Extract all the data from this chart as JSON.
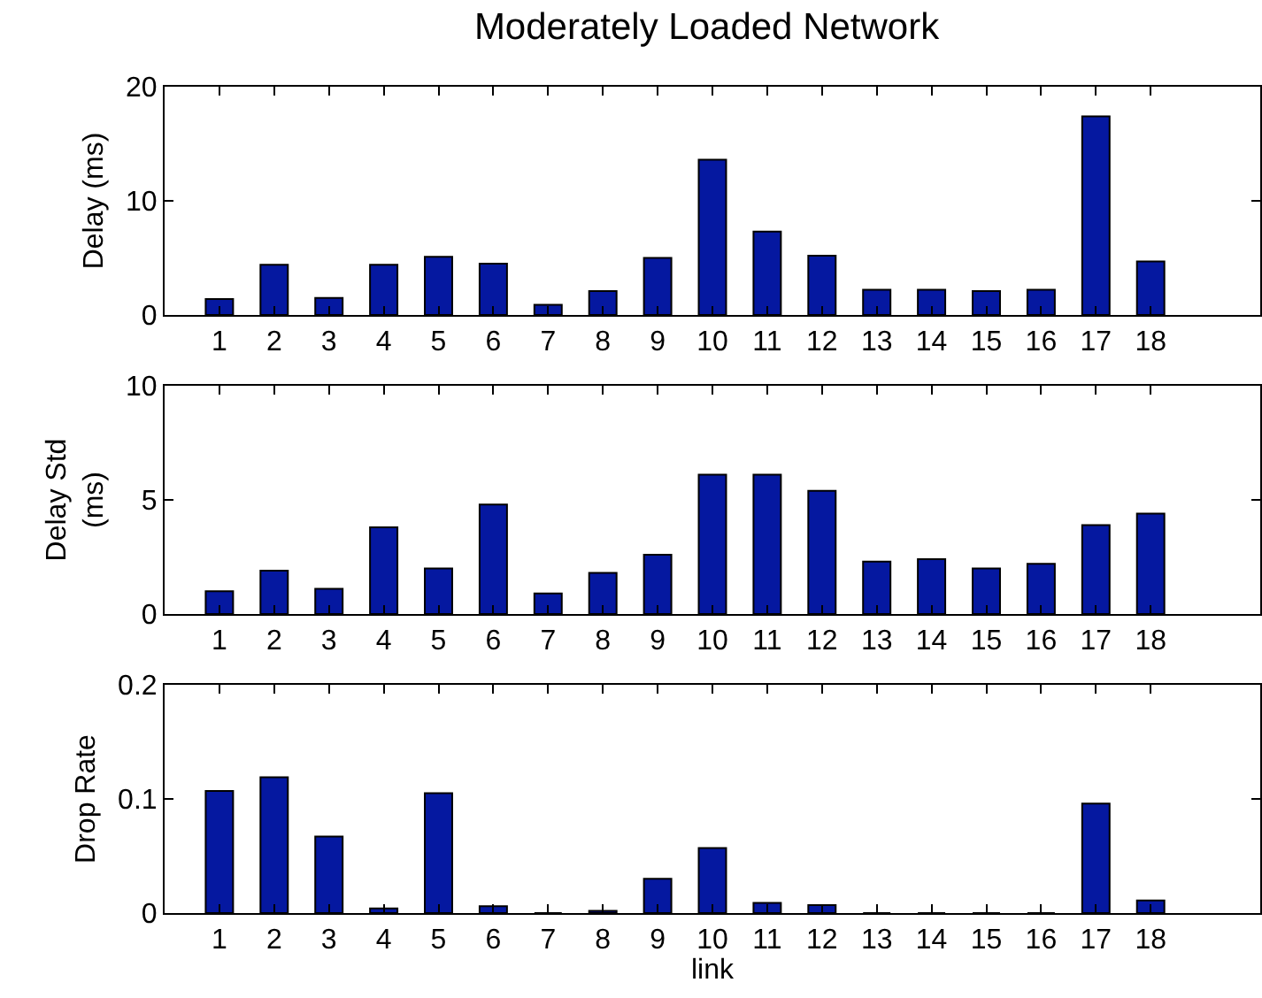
{
  "chart_data": [
    {
      "type": "bar",
      "title": "Moderately Loaded Network",
      "ylabel": "Delay (ms)",
      "x": [
        1,
        2,
        3,
        4,
        5,
        6,
        7,
        8,
        9,
        10,
        11,
        12,
        13,
        14,
        15,
        16,
        17,
        18
      ],
      "values": [
        1.4,
        4.4,
        1.5,
        4.4,
        5.1,
        4.5,
        0.9,
        2.1,
        5.0,
        13.6,
        7.3,
        5.2,
        2.2,
        2.2,
        2.1,
        2.2,
        17.4,
        4.7
      ],
      "color": "#0518a0",
      "xlim": [
        0,
        20
      ],
      "xticks": [
        1,
        2,
        3,
        4,
        5,
        6,
        7,
        8,
        9,
        10,
        11,
        12,
        13,
        14,
        15,
        16,
        17,
        18
      ],
      "ylim": [
        0,
        20
      ],
      "yticks": [
        0,
        10,
        20
      ],
      "grid": false
    },
    {
      "type": "bar",
      "ylabel": "Delay Std\n(ms)",
      "x": [
        1,
        2,
        3,
        4,
        5,
        6,
        7,
        8,
        9,
        10,
        11,
        12,
        13,
        14,
        15,
        16,
        17,
        18
      ],
      "values": [
        1.0,
        1.9,
        1.1,
        3.8,
        2.0,
        4.8,
        0.9,
        1.8,
        2.6,
        6.1,
        6.1,
        5.4,
        2.3,
        2.4,
        2.0,
        2.2,
        3.9,
        4.4
      ],
      "color": "#0518a0",
      "xlim": [
        0,
        20
      ],
      "xticks": [
        1,
        2,
        3,
        4,
        5,
        6,
        7,
        8,
        9,
        10,
        11,
        12,
        13,
        14,
        15,
        16,
        17,
        18
      ],
      "ylim": [
        0,
        10
      ],
      "yticks": [
        0,
        5,
        10
      ],
      "grid": false
    },
    {
      "type": "bar",
      "ylabel": "Drop Rate",
      "xlabel": "link",
      "x": [
        1,
        2,
        3,
        4,
        5,
        6,
        7,
        8,
        9,
        10,
        11,
        12,
        13,
        14,
        15,
        16,
        17,
        18
      ],
      "values": [
        0.107,
        0.119,
        0.067,
        0.004,
        0.105,
        0.006,
        0,
        0.002,
        0.03,
        0.057,
        0.009,
        0.007,
        0,
        0,
        0,
        0,
        0.096,
        0.011
      ],
      "color": "#0518a0",
      "xlim": [
        0,
        20
      ],
      "xticks": [
        1,
        2,
        3,
        4,
        5,
        6,
        7,
        8,
        9,
        10,
        11,
        12,
        13,
        14,
        15,
        16,
        17,
        18
      ],
      "ylim": [
        0,
        0.2
      ],
      "yticks": [
        0,
        0.1,
        0.2
      ],
      "grid": false
    }
  ]
}
